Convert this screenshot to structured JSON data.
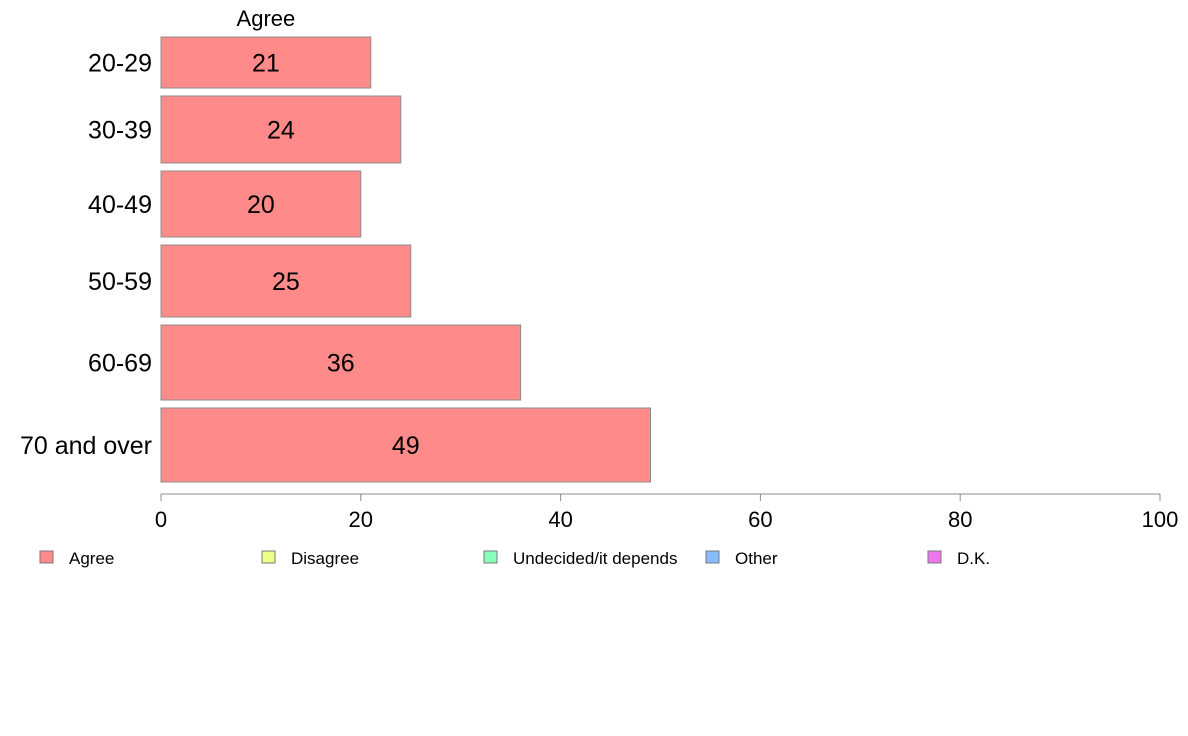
{
  "chart_data": {
    "type": "bar",
    "orientation": "horizontal",
    "title": "Agree",
    "categories": [
      "20-29",
      "30-39",
      "40-49",
      "50-59",
      "60-69",
      "70 and over"
    ],
    "series": [
      {
        "name": "Agree",
        "values": [
          21,
          24,
          20,
          25,
          36,
          49
        ],
        "color": "#ff8a8a"
      }
    ],
    "data_labels": [
      "21",
      "24",
      "20",
      "25",
      "36",
      "49"
    ],
    "xlim": [
      0,
      100
    ],
    "x_ticks": [
      0,
      20,
      40,
      60,
      80,
      100
    ],
    "x_tick_labels": [
      "0",
      "20",
      "40",
      "60",
      "80",
      "100"
    ],
    "grid": false,
    "legend": {
      "position": "bottom",
      "items": [
        {
          "label": "Agree",
          "color": "#ff8a8a"
        },
        {
          "label": "Disagree",
          "color": "#eeff88"
        },
        {
          "label": "Undecided/it depends",
          "color": "#88ffbb"
        },
        {
          "label": "Other",
          "color": "#88bbff"
        },
        {
          "label": "D.K.",
          "color": "#ee77ee"
        }
      ]
    }
  }
}
